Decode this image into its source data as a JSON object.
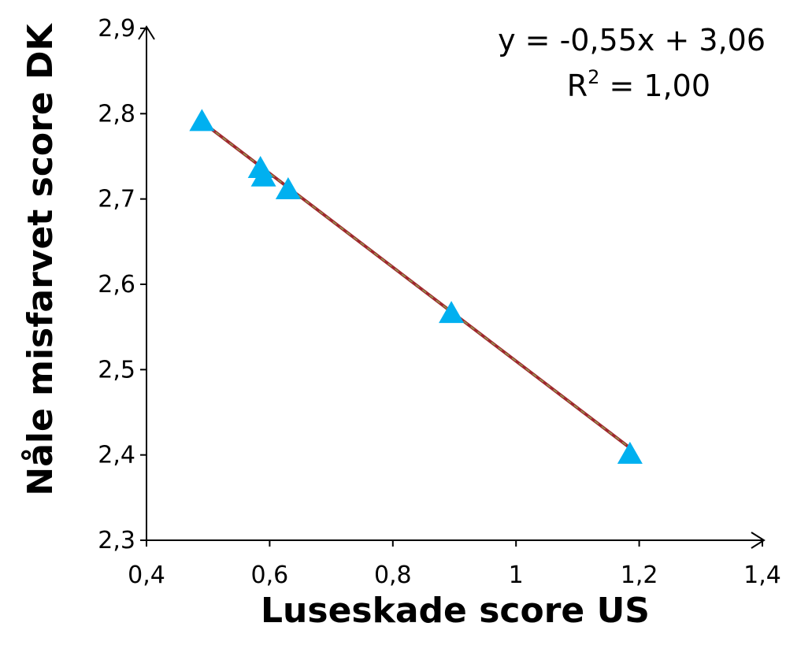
{
  "chart_data": {
    "type": "scatter",
    "title": "",
    "xlabel": "Luseskade score US",
    "ylabel": "Nåle misfarvet score DK",
    "xlim": [
      0.4,
      1.4
    ],
    "ylim": [
      2.3,
      2.9
    ],
    "x_ticks": [
      "0,4",
      "0,6",
      "0,8",
      "1",
      "1,2",
      "1,4"
    ],
    "y_ticks": [
      "2,3",
      "2,4",
      "2,5",
      "2,6",
      "2,7",
      "2,8",
      "2,9"
    ],
    "grid": false,
    "series": [
      {
        "marker": "triangle",
        "color": "#00B0F0",
        "points": [
          {
            "x": 0.49,
            "y": 2.79
          },
          {
            "x": 0.585,
            "y": 2.735
          },
          {
            "x": 0.59,
            "y": 2.725
          },
          {
            "x": 0.63,
            "y": 2.71
          },
          {
            "x": 0.895,
            "y": 2.565
          },
          {
            "x": 1.185,
            "y": 2.4
          }
        ]
      }
    ],
    "trendline": {
      "color": "#A0282D",
      "dash_color": "#8CA050",
      "slope": -0.55,
      "intercept": 3.06,
      "x_range": [
        0.49,
        1.185
      ],
      "equation": "y = -0,55x + 3,06",
      "r2_label": "R",
      "r2_sup": "2",
      "r2_value": " = 1,00"
    }
  }
}
